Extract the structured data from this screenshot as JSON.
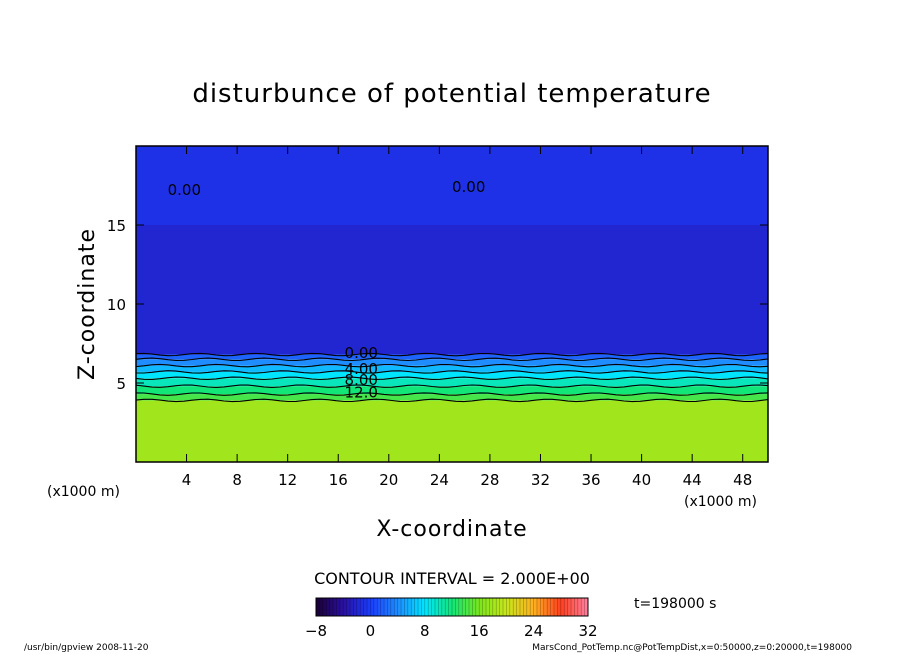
{
  "chart_data": {
    "type": "heatmap",
    "title": "disturbunce of potential temperature",
    "xlabel": "X-coordinate",
    "ylabel": "Z-coordinate",
    "x_unit_label_left": "(x1000 m)",
    "x_unit_label_right": "(x1000 m)",
    "xlim": [
      0,
      50
    ],
    "ylim": [
      0,
      20
    ],
    "x_ticks": [
      4,
      8,
      12,
      16,
      20,
      24,
      28,
      32,
      36,
      40,
      44,
      48
    ],
    "y_ticks": [
      5,
      10,
      15
    ],
    "layers": [
      {
        "z_from": 0,
        "z_to": 3.9,
        "value": 18
      },
      {
        "z_from": 3.9,
        "z_to": 4.3,
        "value": 14
      },
      {
        "z_from": 4.3,
        "z_to": 4.8,
        "value": 12
      },
      {
        "z_from": 4.8,
        "z_to": 5.3,
        "value": 10
      },
      {
        "z_from": 5.3,
        "z_to": 5.7,
        "value": 8
      },
      {
        "z_from": 5.7,
        "z_to": 6.1,
        "value": 6
      },
      {
        "z_from": 6.1,
        "z_to": 6.5,
        "value": 4
      },
      {
        "z_from": 6.5,
        "z_to": 6.8,
        "value": 2
      },
      {
        "z_from": 6.8,
        "z_to": 15.0,
        "value": -2
      },
      {
        "z_from": 15.0,
        "z_to": 20.0,
        "value": -1
      }
    ],
    "contour_labels": [
      {
        "x": 2.5,
        "z": 17.2,
        "text": "0.00"
      },
      {
        "x": 25.0,
        "z": 17.4,
        "text": "0.00"
      },
      {
        "x": 16.5,
        "z": 6.9,
        "text": "0.00"
      },
      {
        "x": 16.5,
        "z": 5.9,
        "text": "4.00"
      },
      {
        "x": 16.5,
        "z": 5.2,
        "text": "8.00"
      },
      {
        "x": 16.5,
        "z": 4.4,
        "text": "12.0"
      }
    ],
    "contour_interval_text": "CONTOUR INTERVAL = 2.000E+00",
    "colorbar": {
      "min": -8,
      "max": 32,
      "tick_labels": [
        "−8",
        "0",
        "8",
        "16",
        "24",
        "32"
      ],
      "tick_values": [
        -8,
        0,
        8,
        16,
        24,
        32
      ],
      "stops": [
        "#1a0033",
        "#2a10a0",
        "#1a3cff",
        "#1f8cff",
        "#00e5ff",
        "#12e678",
        "#7ae61e",
        "#c8e61a",
        "#ffb020",
        "#ff4020",
        "#ff80a0"
      ]
    },
    "colors": {
      "upper_blue": "#1f4ce0",
      "mid_blue": "#1a40d8",
      "lower_green": "#6ae020"
    }
  },
  "time_label": "t=198000 s",
  "footer_left": "/usr/bin/gpview   2008-11-20",
  "footer_right": "MarsCond_PotTemp.nc@PotTempDist,x=0:50000,z=0:20000,t=198000"
}
